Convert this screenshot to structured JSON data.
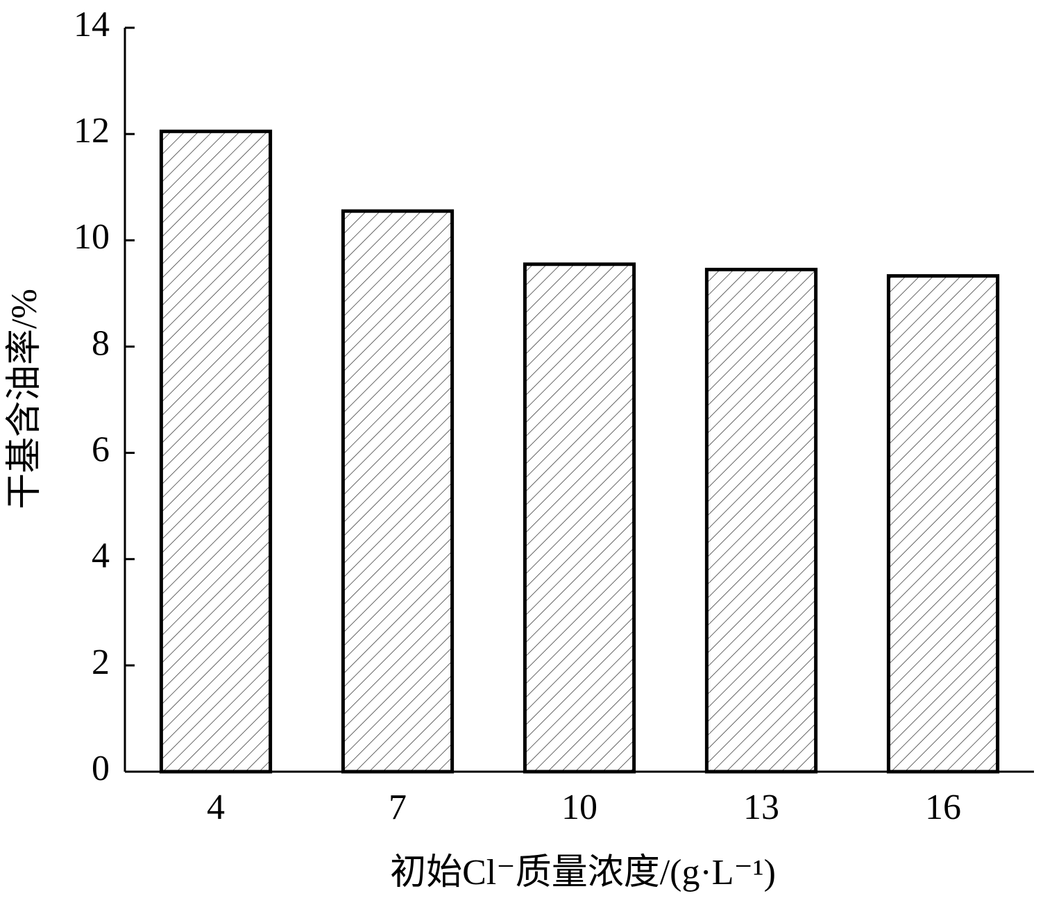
{
  "chart_data": {
    "type": "bar",
    "x_label": "初始Cl⁻质量浓度/(g·L⁻¹)",
    "y_label": "干基含油率/%",
    "categories": [
      "4",
      "7",
      "10",
      "13",
      "16"
    ],
    "values": [
      12.05,
      10.55,
      9.55,
      9.45,
      9.33
    ],
    "color": "#000000",
    "ylim": [
      0,
      14
    ],
    "yticks": [
      0,
      2,
      4,
      6,
      8,
      10,
      12,
      14
    ],
    "grid": false
  }
}
